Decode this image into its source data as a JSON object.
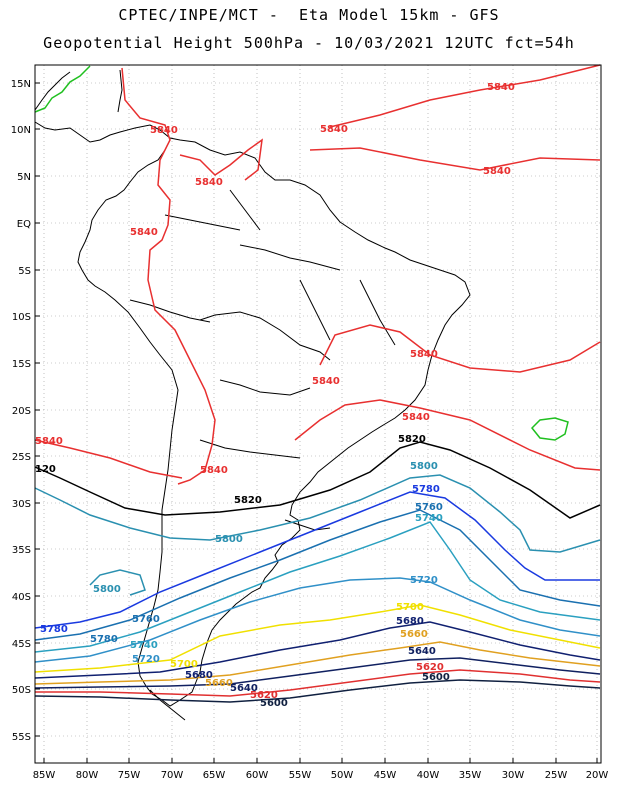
{
  "title": {
    "line1": "CPTEC/INPE/MCT -  Eta Model 15km - GFS",
    "line2": "Geopotential Height 500hPa - 10/03/2021 12UTC fct=54h"
  },
  "axes": {
    "lat_labels": [
      "15N",
      "10N",
      "5N",
      "EQ",
      "5S",
      "10S",
      "15S",
      "20S",
      "25S",
      "30S",
      "35S",
      "40S",
      "45S",
      "50S",
      "55S"
    ],
    "lon_labels": [
      "85W",
      "80W",
      "75W",
      "70W",
      "65W",
      "60W",
      "55W",
      "50W",
      "45W",
      "40W",
      "35W",
      "30W",
      "25W",
      "20W"
    ]
  },
  "colors": {
    "c5840": "#e83030",
    "c5820": "#000000",
    "c5800": "#2a90b0",
    "c5780": "#1a3ae0",
    "c5760": "#1a70b0",
    "c5740": "#2aa0c0",
    "c5720": "#3090c8",
    "c5700": "#f0e000",
    "c5680": "#102070",
    "c5660": "#e0a020",
    "c5640": "#102060",
    "c5620": "#e03030",
    "c5600": "#102040",
    "land": "#000000",
    "green": "#20c020",
    "grid": "#999999"
  },
  "contour_labels": [
    {
      "text": "5840",
      "color": "c5840"
    },
    {
      "text": "5840",
      "color": "c5840"
    },
    {
      "text": "5840",
      "color": "c5840"
    },
    {
      "text": "5840",
      "color": "c5840"
    },
    {
      "text": "5840",
      "color": "c5840"
    },
    {
      "text": "5840",
      "color": "c5840"
    },
    {
      "text": "5840",
      "color": "c5840"
    },
    {
      "text": "5840",
      "color": "c5840"
    },
    {
      "text": "5840",
      "color": "c5840"
    },
    {
      "text": "5840",
      "color": "c5840"
    },
    {
      "text": "5840",
      "color": "c5840"
    },
    {
      "text": "5820",
      "color": "c5820"
    },
    {
      "text": "5820",
      "color": "c5820"
    },
    {
      "text": "120",
      "color": "c5820"
    },
    {
      "text": "5800",
      "color": "c5800"
    },
    {
      "text": "5800",
      "color": "c5800"
    },
    {
      "text": "5800",
      "color": "c5800"
    },
    {
      "text": "5780",
      "color": "c5780"
    },
    {
      "text": "5780",
      "color": "c5780"
    },
    {
      "text": "5780",
      "color": "c5760"
    },
    {
      "text": "5760",
      "color": "c5760"
    },
    {
      "text": "5760",
      "color": "c5760"
    },
    {
      "text": "5740",
      "color": "c5740"
    },
    {
      "text": "5740",
      "color": "c5740"
    },
    {
      "text": "5720",
      "color": "c5720"
    },
    {
      "text": "5720",
      "color": "c5720"
    },
    {
      "text": "5700",
      "color": "c5700"
    },
    {
      "text": "5700",
      "color": "c5700"
    },
    {
      "text": "5680",
      "color": "c5680"
    },
    {
      "text": "5680",
      "color": "c5680"
    },
    {
      "text": "5660",
      "color": "c5660"
    },
    {
      "text": "5660",
      "color": "c5660"
    },
    {
      "text": "5640",
      "color": "c5640"
    },
    {
      "text": "5640",
      "color": "c5640"
    },
    {
      "text": "5620",
      "color": "c5620"
    },
    {
      "text": "5620",
      "color": "c5620"
    },
    {
      "text": "5600",
      "color": "c5600"
    },
    {
      "text": "5600",
      "color": "c5600"
    }
  ]
}
